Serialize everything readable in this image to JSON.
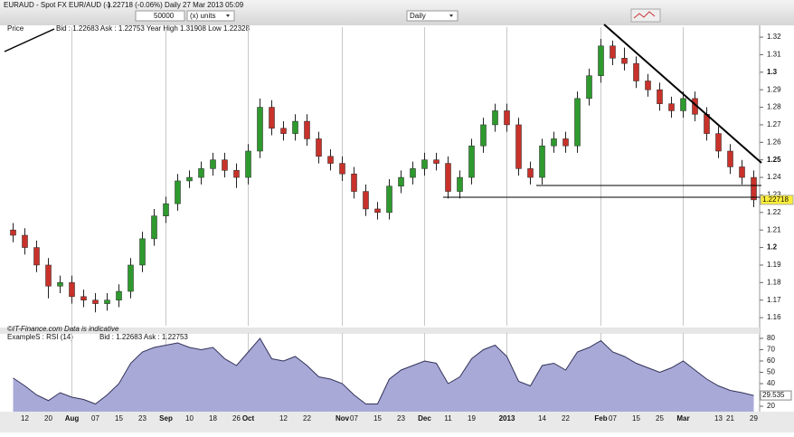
{
  "toolbar": {
    "symbol": "EURAUD - Spot FX EUR/AUD (-)",
    "quote": "1.22718 (-0.06%)   Daily   27 Mar 2013 05:09",
    "quantity": "50000",
    "units": "(x) units",
    "interval": "Daily"
  },
  "chart_data": [
    {
      "type": "candlestick",
      "title": "Price",
      "subtitle": "Bid : 1.22683  Ask : 1.22753  Year High 1.31908  Low 1.22328",
      "footer": "©IT-Finance.com   Data is indicative",
      "open": [
        1.21,
        1.207,
        1.2,
        1.19,
        1.178,
        1.18,
        1.172,
        1.17,
        1.168,
        1.17,
        1.175,
        1.19,
        1.205,
        1.218,
        1.225,
        1.238,
        1.24,
        1.245,
        1.25,
        1.244,
        1.24,
        1.255,
        1.28,
        1.268,
        1.265,
        1.272,
        1.262,
        1.252,
        1.248,
        1.242,
        1.232,
        1.222,
        1.22,
        1.235,
        1.24,
        1.245,
        1.25,
        1.248,
        1.232,
        1.24,
        1.258,
        1.27,
        1.278,
        1.27,
        1.245,
        1.24,
        1.258,
        1.262,
        1.258,
        1.285,
        1.298,
        1.315,
        1.308,
        1.305,
        1.295,
        1.29,
        1.282,
        1.278,
        1.285,
        1.276,
        1.265,
        1.255,
        1.246,
        1.24
      ],
      "high": [
        1.214,
        1.211,
        1.204,
        1.194,
        1.184,
        1.184,
        1.176,
        1.174,
        1.174,
        1.179,
        1.194,
        1.209,
        1.222,
        1.229,
        1.242,
        1.244,
        1.249,
        1.254,
        1.254,
        1.248,
        1.259,
        1.285,
        1.284,
        1.272,
        1.276,
        1.276,
        1.266,
        1.256,
        1.252,
        1.246,
        1.236,
        1.226,
        1.239,
        1.244,
        1.249,
        1.254,
        1.254,
        1.252,
        1.244,
        1.262,
        1.274,
        1.282,
        1.282,
        1.274,
        1.249,
        1.262,
        1.266,
        1.266,
        1.289,
        1.302,
        1.319,
        1.318,
        1.314,
        1.309,
        1.299,
        1.294,
        1.286,
        1.289,
        1.289,
        1.28,
        1.269,
        1.259,
        1.25,
        1.244
      ],
      "low": [
        1.203,
        1.196,
        1.186,
        1.171,
        1.174,
        1.168,
        1.166,
        1.163,
        1.164,
        1.166,
        1.171,
        1.186,
        1.201,
        1.214,
        1.221,
        1.234,
        1.236,
        1.241,
        1.24,
        1.234,
        1.236,
        1.251,
        1.264,
        1.261,
        1.261,
        1.258,
        1.248,
        1.244,
        1.238,
        1.228,
        1.218,
        1.216,
        1.216,
        1.231,
        1.236,
        1.241,
        1.244,
        1.228,
        1.228,
        1.236,
        1.254,
        1.266,
        1.266,
        1.241,
        1.236,
        1.236,
        1.254,
        1.254,
        1.254,
        1.281,
        1.294,
        1.304,
        1.301,
        1.291,
        1.286,
        1.278,
        1.274,
        1.274,
        1.272,
        1.261,
        1.251,
        1.242,
        1.236,
        1.223
      ],
      "close": [
        1.207,
        1.2,
        1.19,
        1.178,
        1.18,
        1.172,
        1.17,
        1.168,
        1.17,
        1.175,
        1.19,
        1.205,
        1.218,
        1.225,
        1.238,
        1.24,
        1.245,
        1.25,
        1.244,
        1.24,
        1.255,
        1.28,
        1.268,
        1.265,
        1.272,
        1.262,
        1.252,
        1.248,
        1.242,
        1.232,
        1.222,
        1.22,
        1.235,
        1.24,
        1.245,
        1.25,
        1.248,
        1.232,
        1.24,
        1.258,
        1.27,
        1.278,
        1.27,
        1.245,
        1.24,
        1.258,
        1.262,
        1.258,
        1.285,
        1.298,
        1.315,
        1.308,
        1.305,
        1.295,
        1.29,
        1.282,
        1.278,
        1.285,
        1.276,
        1.265,
        1.255,
        1.246,
        1.24,
        1.22718
      ],
      "up_color": "#2e9a2e",
      "down_color": "#c8322a",
      "ylim": [
        1.1554,
        1.3257
      ],
      "yticks": [
        1.16,
        1.17,
        1.18,
        1.19,
        1.2,
        1.21,
        1.22,
        1.23,
        1.24,
        1.25,
        1.26,
        1.27,
        1.28,
        1.29,
        1.3,
        1.31,
        1.32
      ]
    },
    {
      "type": "area",
      "title": "ExampleS : RSI (14)",
      "subtitle": "Bid : 1.22683  Ask : 1.22753",
      "categories": [
        null,
        "12",
        null,
        "20",
        null,
        "Aug",
        null,
        "07",
        null,
        "15",
        null,
        "23",
        null,
        "Sep",
        null,
        "10",
        null,
        "18",
        null,
        "26",
        "Oct",
        null,
        null,
        "12",
        null,
        "22",
        null,
        null,
        "Nov",
        "07",
        null,
        "15",
        null,
        "23",
        null,
        "Dec",
        null,
        "11",
        null,
        "19",
        null,
        null,
        "2013",
        null,
        null,
        "14",
        null,
        "22",
        null,
        null,
        "Feb",
        "07",
        null,
        "15",
        null,
        "25",
        null,
        "Mar",
        null,
        null,
        "13",
        "21",
        null,
        "29"
      ],
      "values": [
        45,
        38,
        30,
        25,
        32,
        28,
        26,
        22,
        30,
        40,
        58,
        68,
        72,
        74,
        76,
        72,
        70,
        72,
        62,
        56,
        68,
        80,
        62,
        60,
        64,
        56,
        46,
        44,
        40,
        30,
        22,
        22,
        44,
        52,
        56,
        60,
        58,
        40,
        46,
        62,
        70,
        74,
        64,
        42,
        38,
        56,
        58,
        52,
        68,
        72,
        78,
        68,
        64,
        58,
        54,
        50,
        54,
        60,
        52,
        44,
        38,
        34,
        32,
        29.535
      ],
      "color": "#a9a9d8",
      "line_color": "#33335a",
      "ylim": [
        15.2,
        84.8
      ],
      "yticks": [
        20,
        30,
        40,
        50,
        60,
        70,
        80
      ]
    }
  ]
}
